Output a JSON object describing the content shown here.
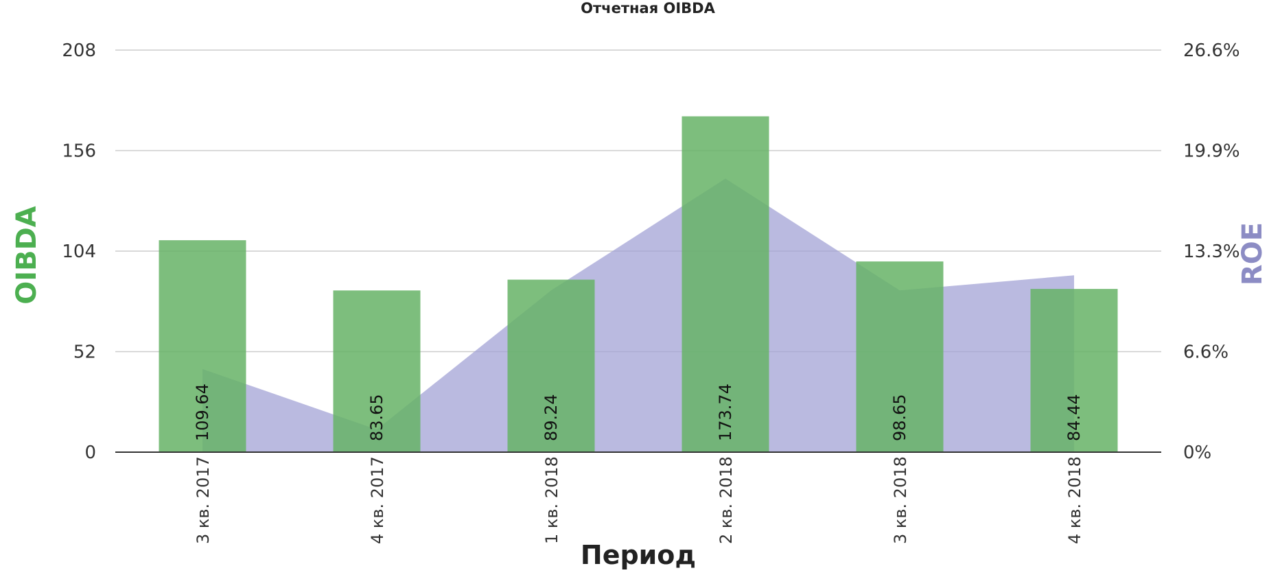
{
  "chart_data": {
    "type": "bar",
    "title": "Отчетная OIBDA",
    "xlabel": "Период",
    "ylabel_left": "OIBDA",
    "ylabel_right": "ROE",
    "categories": [
      "3 кв. 2017",
      "4 кв. 2017",
      "1 кв. 2018",
      "2 кв. 2018",
      "3 кв. 2018",
      "4 кв. 2018"
    ],
    "series": [
      {
        "name": "OIBDA",
        "type": "bar",
        "axis": "left",
        "color": "#66b366",
        "values": [
          109.64,
          83.65,
          89.24,
          173.74,
          98.65,
          84.44
        ],
        "value_labels": [
          "109.64",
          "83.65",
          "89.24",
          "173.74",
          "98.65",
          "84.44"
        ]
      },
      {
        "name": "ROE",
        "type": "area",
        "axis": "right",
        "color": "#a3a3d6",
        "values": [
          5.5,
          1.5,
          10.7,
          18.1,
          10.7,
          11.7
        ]
      }
    ],
    "ylim_left": [
      0,
      208
    ],
    "yticks_left": [
      "0",
      "52",
      "104",
      "156",
      "208"
    ],
    "ylim_right": [
      0,
      26.6
    ],
    "yticks_right": [
      "0%",
      "6.6%",
      "13.3%",
      "19.9%",
      "26.6%"
    ],
    "grid": true,
    "legend": "none",
    "colors": {
      "bar": "#66b366",
      "area": "#a3a3d6",
      "left_axis_label": "#4caf50",
      "right_axis_label": "#8c8cc4",
      "grid": "#cccccc"
    }
  }
}
